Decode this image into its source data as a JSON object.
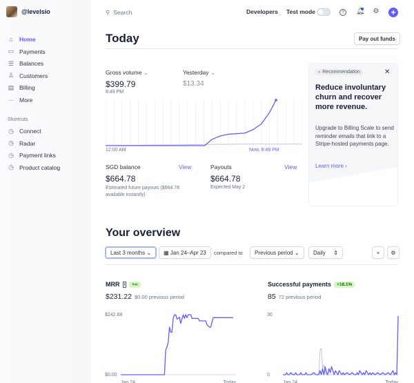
{
  "account": {
    "name": "@levelsio"
  },
  "sidebar": {
    "items": [
      {
        "label": "Home",
        "icon": "home-icon",
        "active": true
      },
      {
        "label": "Payments",
        "icon": "wallet-icon"
      },
      {
        "label": "Balances",
        "icon": "balances-icon"
      },
      {
        "label": "Customers",
        "icon": "person-icon"
      },
      {
        "label": "Billing",
        "icon": "billing-icon"
      },
      {
        "label": "More",
        "icon": "more-icon"
      }
    ],
    "shortcuts_title": "Shortcuts",
    "shortcuts": [
      {
        "label": "Connect",
        "icon": "clock-icon"
      },
      {
        "label": "Radar",
        "icon": "clock-icon"
      },
      {
        "label": "Payment links",
        "icon": "clock-icon"
      },
      {
        "label": "Product catalog",
        "icon": "clock-icon"
      }
    ]
  },
  "topbar": {
    "search_placeholder": "Search",
    "developers": "Developers",
    "test_mode": "Test mode",
    "test_mode_on": false
  },
  "today": {
    "title": "Today",
    "payout_button": "Pay out funds",
    "gross_volume": {
      "label": "Gross volume",
      "value": "$399.79",
      "time": "8:49 PM"
    },
    "yesterday": {
      "label": "Yesterday",
      "value": "$13.34"
    },
    "axis_start": "12:00 AM",
    "axis_end": "Now, 8:49 PM",
    "sgd_balance": {
      "label": "SGD balance",
      "link": "View",
      "value": "$664.78",
      "note": "Estimated future payouts ($664.78 available instantly)"
    },
    "payouts": {
      "label": "Payouts",
      "link": "View",
      "value": "$664.78",
      "note": "Expected May 2"
    }
  },
  "recommendation": {
    "tag": "Recommendation",
    "title": "Reduce involuntary churn and recover more revenue.",
    "body": "Upgrade to Billing Scale to send reminder emails that link to a Stripe-hosted payments page.",
    "link": "Learn more"
  },
  "overview": {
    "title": "Your overview",
    "range": "Last 3 months",
    "dates": "Jan 24–Apr 23",
    "compared_to": "compared to",
    "compare": "Previous period",
    "interval": "Daily",
    "mrr": {
      "label": "MRR",
      "badge": "+∞",
      "value": "$231.22",
      "previous": "$0.00 previous period",
      "ymax_label": "$242.68",
      "ymin_label": "$0.00",
      "x_start": "Jan 24",
      "x_end": "Today"
    },
    "payments": {
      "label": "Successful payments",
      "badge": "+18.1%",
      "value": "85",
      "previous": "72 previous period",
      "ymax_label": "30",
      "ymin_label": "0",
      "x_start": "Jan 24",
      "x_end": "Today"
    }
  },
  "colors": {
    "accent": "#635bff",
    "badge_bg": "#d7f7c2",
    "comparison": "#c1c9d2"
  },
  "chart_data": [
    {
      "type": "line",
      "name": "gross-volume-today",
      "xlabel": "",
      "ylabel": "",
      "x_unit": "hour",
      "xlim": [
        0,
        24
      ],
      "ylim": [
        0,
        400
      ],
      "series": [
        {
          "x": [
            0,
            12.1,
            13,
            14,
            15,
            16,
            17,
            18,
            19,
            20,
            20.8
          ],
          "values": [
            0,
            0,
            55,
            85,
            100,
            105,
            110,
            140,
            190,
            290,
            399.79
          ]
        },
        {
          "x": [
            0,
            17,
            24
          ],
          "values": [
            0,
            13.34,
            13.34
          ],
          "style": "comparison"
        }
      ]
    },
    {
      "type": "line",
      "name": "mrr",
      "ylim": [
        0,
        242.68
      ],
      "xlim": [
        0,
        90
      ],
      "series": [
        {
          "x": [
            0,
            34,
            35,
            36,
            37,
            38,
            39,
            40,
            41,
            42,
            43,
            44,
            45,
            47,
            48,
            50,
            51,
            52,
            53,
            54,
            56,
            57,
            59,
            62,
            63,
            66,
            68,
            69,
            71,
            72,
            74,
            77,
            90
          ],
          "values": [
            0,
            0,
            0,
            100,
            110,
            130,
            190,
            170,
            170,
            225,
            240,
            240,
            222,
            230,
            205,
            240,
            225,
            240,
            228,
            240,
            240,
            225,
            225,
            225,
            215,
            215,
            215,
            200,
            190,
            190,
            228,
            228,
            228
          ]
        }
      ]
    },
    {
      "type": "line",
      "name": "successful-payments",
      "ylim": [
        0,
        30
      ],
      "xlim": [
        0,
        90
      ],
      "series": [
        {
          "x": [
            0,
            2,
            3,
            4,
            5,
            6,
            8,
            9,
            10,
            11,
            13,
            14,
            15,
            17,
            18,
            19,
            20,
            22,
            24,
            26,
            27,
            28,
            29,
            30,
            31,
            32,
            33,
            34,
            35,
            36,
            37,
            38,
            39,
            40,
            41,
            42,
            43,
            44,
            45,
            46,
            47,
            48,
            50,
            52,
            54,
            56,
            57,
            58,
            59,
            60,
            61,
            62,
            63,
            64,
            65,
            66,
            67,
            68,
            69,
            70,
            72,
            74,
            76,
            78,
            80,
            82,
            84,
            85,
            86,
            87,
            88,
            89,
            90
          ],
          "values": [
            0,
            0,
            1,
            0,
            0,
            1,
            0,
            0,
            1,
            0,
            0,
            1,
            0,
            0,
            1,
            0,
            0,
            0,
            1,
            0,
            0,
            0,
            2,
            0,
            3,
            0,
            4,
            1,
            0,
            3,
            1,
            4,
            2,
            0,
            2,
            1,
            0,
            2,
            1,
            0,
            1,
            0,
            1,
            0,
            1,
            0,
            0,
            1,
            0,
            2,
            1,
            0,
            1,
            0,
            2,
            1,
            0,
            1,
            0,
            1,
            0,
            1,
            0,
            1,
            0,
            1,
            0,
            1,
            2,
            0,
            1,
            0,
            29
          ]
        },
        {
          "x": [
            0,
            28,
            29,
            30,
            31,
            32,
            33,
            34,
            90
          ],
          "values": [
            0,
            0,
            12,
            13,
            3,
            5,
            1,
            0,
            0
          ],
          "style": "comparison"
        }
      ]
    }
  ]
}
